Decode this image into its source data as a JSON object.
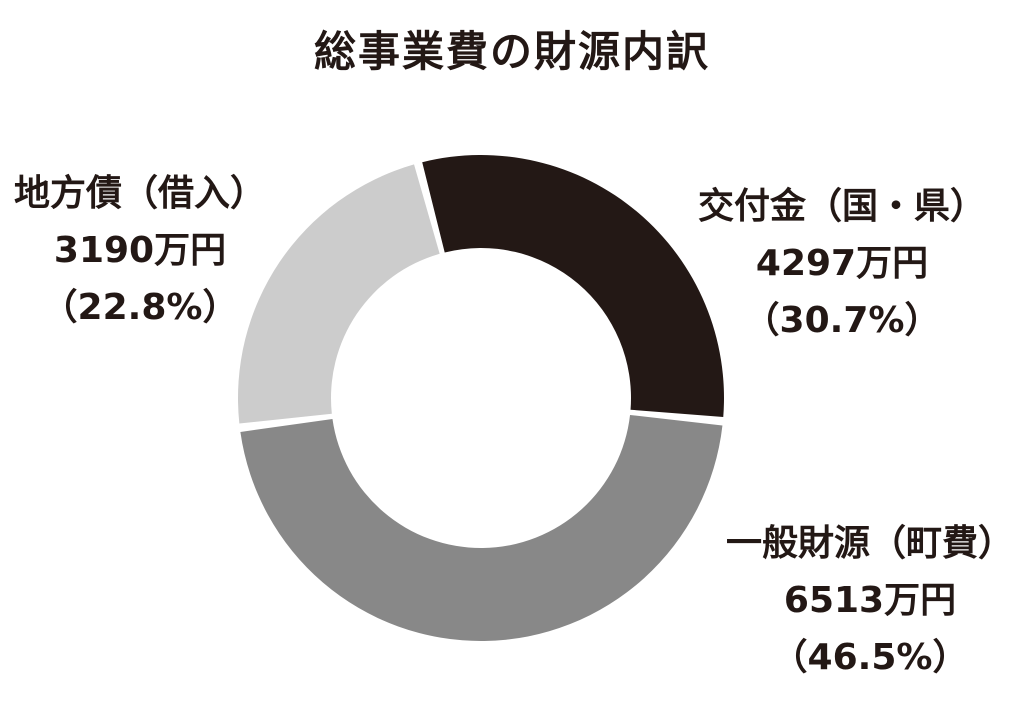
{
  "chart_data": {
    "type": "pie",
    "title": "総事業費の財源内訳",
    "unit": "万円",
    "slices": [
      {
        "name": "交付金（国・県）",
        "value": 4297,
        "value_text": "4297万円",
        "percent": 30.7,
        "percent_text": "（30.7%）",
        "color": "#231815"
      },
      {
        "name": "一般財源（町費）",
        "value": 6513,
        "value_text": "6513万円",
        "percent": 46.5,
        "percent_text": "（46.5%）",
        "color": "#888888"
      },
      {
        "name": "地方債（借入）",
        "value": 3190,
        "value_text": "3190万円",
        "percent": 22.8,
        "percent_text": "（22.8%）",
        "color": "#cccccc"
      }
    ]
  }
}
